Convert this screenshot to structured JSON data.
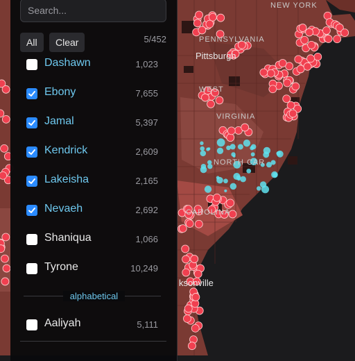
{
  "search": {
    "placeholder": "Search..."
  },
  "toolbar": {
    "all_label": "All",
    "clear_label": "Clear",
    "selection_count": "5/452"
  },
  "list": [
    {
      "name": "Dashawn",
      "count": "1,023",
      "checked": false
    },
    {
      "name": "Ebony",
      "count": "7,655",
      "checked": true
    },
    {
      "name": "Jamal",
      "count": "5,397",
      "checked": true
    },
    {
      "name": "Kendrick",
      "count": "2,609",
      "checked": true
    },
    {
      "name": "Lakeisha",
      "count": "2,165",
      "checked": true
    },
    {
      "name": "Nevaeh",
      "count": "2,692",
      "checked": true
    },
    {
      "name": "Shaniqua",
      "count": "1,066",
      "checked": false
    },
    {
      "name": "Tyrone",
      "count": "10,249",
      "checked": false
    }
  ],
  "section": {
    "label": "alphabetical"
  },
  "alpha_list": [
    {
      "name": "Aaliyah",
      "count": "5,111",
      "checked": false
    }
  ],
  "map": {
    "labels": {
      "new_york": "NEW YORK",
      "pittsburgh": "Pittsburgh",
      "pennsylvania": "PENNSYLVANIA",
      "west": "WEST",
      "virginia": "VIRGINIA",
      "north_car": "NORTH CAR",
      "carolina": "CAROLINA",
      "jacksonville": "ksonville"
    },
    "colors": {
      "land": "#7a3a33",
      "dark": "#3a1a18",
      "ocean": "#1b1b1d",
      "dot_red": "#f04050",
      "dot_cyan": "#5fe0ee"
    }
  }
}
